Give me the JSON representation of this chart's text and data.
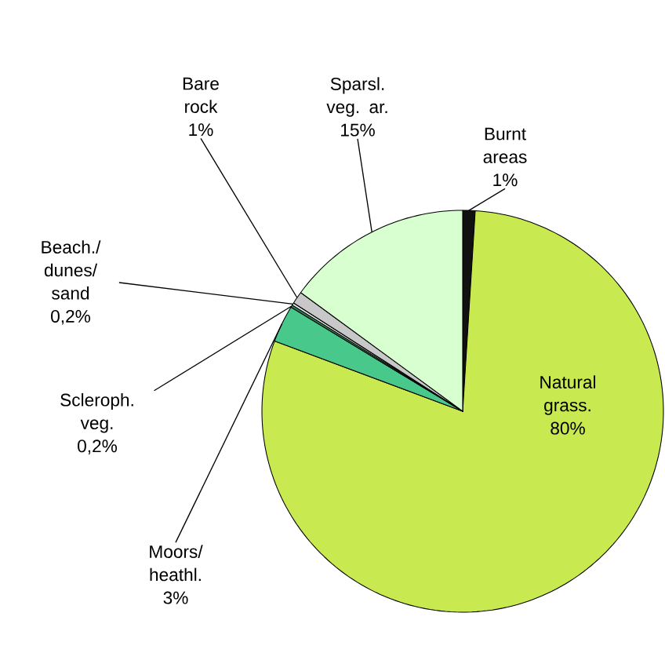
{
  "chart_data": {
    "type": "pie",
    "categories": [
      "Burnt areas",
      "Natural grass.",
      "Moors/ heathl.",
      "Scleroph. veg.",
      "Beach./ dunes/ sand",
      "Bare rock",
      "Sparsl. veg. ar."
    ],
    "values": [
      1,
      80,
      3,
      0.2,
      0.2,
      1,
      15
    ],
    "value_labels": [
      "1%",
      "80%",
      "3%",
      "0,2%",
      "0,2%",
      "1%",
      "15%"
    ],
    "colors": [
      "#111111",
      "#c8ea50",
      "#48c88a",
      "#2e7a50",
      "#e8e8e8",
      "#c8c8c8",
      "#d8ffd0"
    ],
    "legend": false
  }
}
